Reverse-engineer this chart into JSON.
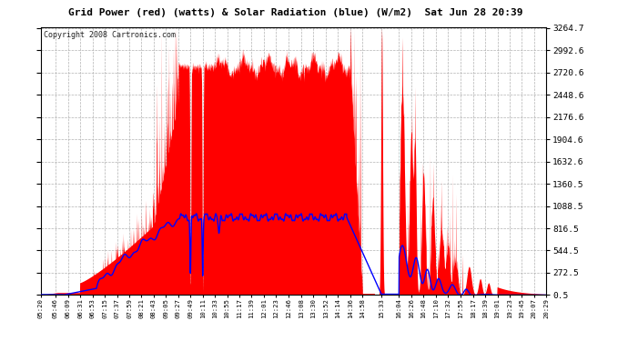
{
  "title": "Grid Power (red) (watts) & Solar Radiation (blue) (W/m2)  Sat Jun 28 20:39",
  "copyright": "Copyright 2008 Cartronics.com",
  "bg_color": "#ffffff",
  "plot_bg_color": "#ffffff",
  "grid_color": "#aaaaaa",
  "yticks": [
    0.5,
    272.5,
    544.5,
    816.5,
    1088.5,
    1360.5,
    1632.6,
    1904.6,
    2176.6,
    2448.6,
    2720.6,
    2992.6,
    3264.7
  ],
  "ymin": 0.5,
  "ymax": 3264.7,
  "x_labels": [
    "05:20",
    "05:46",
    "06:09",
    "06:31",
    "06:53",
    "07:15",
    "07:37",
    "07:59",
    "08:21",
    "08:43",
    "09:05",
    "09:27",
    "09:49",
    "10:11",
    "10:33",
    "10:55",
    "11:17",
    "11:39",
    "12:01",
    "12:23",
    "12:46",
    "13:08",
    "13:30",
    "13:52",
    "14:14",
    "14:36",
    "14:58",
    "15:33",
    "16:04",
    "16:26",
    "16:48",
    "17:10",
    "17:32",
    "17:55",
    "18:17",
    "18:39",
    "19:01",
    "19:23",
    "19:45",
    "20:07",
    "20:29"
  ]
}
